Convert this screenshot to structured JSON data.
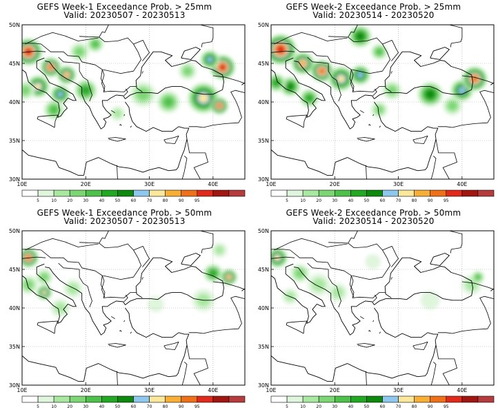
{
  "panels": [
    {
      "title": "GEFS Week-1 Exceedance Prob. > 25mm",
      "valid": "Valid: 20230507 - 20230513",
      "blobs": [
        {
          "lon": 11.0,
          "lat": 46.5,
          "r": 2.2,
          "p": 95
        },
        {
          "lon": 14.5,
          "lat": 44.5,
          "r": 1.6,
          "p": 90
        },
        {
          "lon": 17.0,
          "lat": 43.5,
          "r": 1.5,
          "p": 80
        },
        {
          "lon": 12.5,
          "lat": 42.0,
          "r": 1.8,
          "p": 70
        },
        {
          "lon": 16.0,
          "lat": 41.0,
          "r": 1.5,
          "p": 60
        },
        {
          "lon": 20.0,
          "lat": 41.5,
          "r": 1.8,
          "p": 40
        },
        {
          "lon": 15.0,
          "lat": 39.0,
          "r": 1.6,
          "p": 30
        },
        {
          "lon": 10.5,
          "lat": 41.5,
          "r": 1.5,
          "p": 20
        },
        {
          "lon": 19.0,
          "lat": 46.5,
          "r": 1.5,
          "p": 20
        },
        {
          "lon": 21.5,
          "lat": 47.5,
          "r": 1.3,
          "p": 30
        },
        {
          "lon": 29.0,
          "lat": 41.0,
          "r": 2.0,
          "p": 20
        },
        {
          "lon": 33.0,
          "lat": 40.0,
          "r": 1.8,
          "p": 30
        },
        {
          "lon": 38.5,
          "lat": 40.5,
          "r": 2.5,
          "p": 70
        },
        {
          "lon": 41.0,
          "lat": 39.5,
          "r": 1.4,
          "p": 90
        },
        {
          "lon": 41.5,
          "lat": 44.5,
          "r": 2.0,
          "p": 95
        },
        {
          "lon": 39.5,
          "lat": 45.5,
          "r": 1.5,
          "p": 60
        },
        {
          "lon": 36.0,
          "lat": 44.0,
          "r": 1.4,
          "p": 20
        },
        {
          "lon": 25.0,
          "lat": 38.5,
          "r": 1.2,
          "p": 10
        }
      ]
    },
    {
      "title": "GEFS Week-2 Exceedance Prob. > 25mm",
      "valid": "Valid: 20230514 - 20230520",
      "blobs": [
        {
          "lon": 11.5,
          "lat": 46.8,
          "r": 2.5,
          "p": 95
        },
        {
          "lon": 15.0,
          "lat": 45.0,
          "r": 1.8,
          "p": 80
        },
        {
          "lon": 18.0,
          "lat": 44.0,
          "r": 1.8,
          "p": 90
        },
        {
          "lon": 21.0,
          "lat": 43.0,
          "r": 2.0,
          "p": 70
        },
        {
          "lon": 24.0,
          "lat": 43.5,
          "r": 1.6,
          "p": 60
        },
        {
          "lon": 13.0,
          "lat": 42.0,
          "r": 1.6,
          "p": 50
        },
        {
          "lon": 16.0,
          "lat": 40.5,
          "r": 1.5,
          "p": 40
        },
        {
          "lon": 10.8,
          "lat": 42.5,
          "r": 1.5,
          "p": 40
        },
        {
          "lon": 24.0,
          "lat": 48.5,
          "r": 1.8,
          "p": 50
        },
        {
          "lon": 27.0,
          "lat": 46.5,
          "r": 1.3,
          "p": 30
        },
        {
          "lon": 29.0,
          "lat": 41.5,
          "r": 1.5,
          "p": 20
        },
        {
          "lon": 35.0,
          "lat": 41.0,
          "r": 2.0,
          "p": 50
        },
        {
          "lon": 40.0,
          "lat": 41.5,
          "r": 1.8,
          "p": 60
        },
        {
          "lon": 42.0,
          "lat": 43.0,
          "r": 2.0,
          "p": 90
        },
        {
          "lon": 38.5,
          "lat": 39.5,
          "r": 1.5,
          "p": 20
        },
        {
          "lon": 27.0,
          "lat": 39.0,
          "r": 1.3,
          "p": 20
        }
      ]
    },
    {
      "title": "GEFS Week-1 Exceedance Prob. > 50mm",
      "valid": "Valid: 20230507 - 20230513",
      "blobs": [
        {
          "lon": 11.0,
          "lat": 46.5,
          "r": 1.6,
          "p": 90
        },
        {
          "lon": 13.5,
          "lat": 44.0,
          "r": 1.3,
          "p": 20
        },
        {
          "lon": 13.5,
          "lat": 42.0,
          "r": 1.2,
          "p": 70
        },
        {
          "lon": 11.0,
          "lat": 43.0,
          "r": 1.5,
          "p": 20
        },
        {
          "lon": 16.0,
          "lat": 40.0,
          "r": 1.5,
          "p": 10
        },
        {
          "lon": 18.0,
          "lat": 42.5,
          "r": 1.5,
          "p": 10
        },
        {
          "lon": 31.0,
          "lat": 40.5,
          "r": 1.3,
          "p": 5
        },
        {
          "lon": 38.5,
          "lat": 41.0,
          "r": 1.8,
          "p": 10
        },
        {
          "lon": 40.0,
          "lat": 44.5,
          "r": 1.5,
          "p": 40
        },
        {
          "lon": 42.5,
          "lat": 44.0,
          "r": 1.3,
          "p": 80
        },
        {
          "lon": 41.0,
          "lat": 47.5,
          "r": 1.2,
          "p": 10
        }
      ]
    },
    {
      "title": "GEFS Week-2 Exceedance Prob. > 50mm",
      "valid": "Valid: 20230514 - 20230520",
      "blobs": [
        {
          "lon": 11.0,
          "lat": 46.5,
          "r": 1.6,
          "p": 70
        },
        {
          "lon": 14.5,
          "lat": 44.5,
          "r": 1.5,
          "p": 20
        },
        {
          "lon": 17.5,
          "lat": 43.0,
          "r": 1.8,
          "p": 10
        },
        {
          "lon": 20.5,
          "lat": 42.0,
          "r": 1.5,
          "p": 10
        },
        {
          "lon": 13.0,
          "lat": 41.5,
          "r": 1.3,
          "p": 10
        },
        {
          "lon": 26.0,
          "lat": 46.0,
          "r": 1.2,
          "p": 5
        },
        {
          "lon": 35.0,
          "lat": 41.0,
          "r": 1.5,
          "p": 5
        },
        {
          "lon": 41.5,
          "lat": 43.0,
          "r": 1.6,
          "p": 10
        },
        {
          "lon": 42.5,
          "lat": 44.0,
          "r": 1.0,
          "p": 30
        }
      ]
    }
  ],
  "map": {
    "lon_range": [
      10,
      45
    ],
    "lat_range": [
      30,
      50
    ],
    "lon_ticks": [
      {
        "value": 10,
        "label": "10E"
      },
      {
        "value": 20,
        "label": "20E"
      },
      {
        "value": 30,
        "label": "30E"
      },
      {
        "value": 40,
        "label": "40E"
      }
    ],
    "lat_ticks": [
      {
        "value": 30,
        "label": "30N"
      },
      {
        "value": 35,
        "label": "35N"
      },
      {
        "value": 40,
        "label": "40N"
      },
      {
        "value": 45,
        "label": "45N"
      },
      {
        "value": 50,
        "label": "50N"
      }
    ],
    "gridlines": "dotted"
  },
  "colorbar": {
    "labels": [
      "5",
      "10",
      "20",
      "30",
      "40",
      "50",
      "60",
      "70",
      "80",
      "90",
      "95"
    ],
    "thresholds": [
      5,
      10,
      20,
      30,
      40,
      50,
      60,
      70,
      80,
      90,
      95
    ],
    "colors": [
      "#ffffff",
      "#dff5dc",
      "#a8e8a0",
      "#7bd673",
      "#4ec14a",
      "#22a822",
      "#0d8a0d",
      "#8fc8ee",
      "#fbe89a",
      "#f7b035",
      "#ee7018",
      "#e02a1c",
      "#a01712",
      "#b43c3c"
    ]
  }
}
